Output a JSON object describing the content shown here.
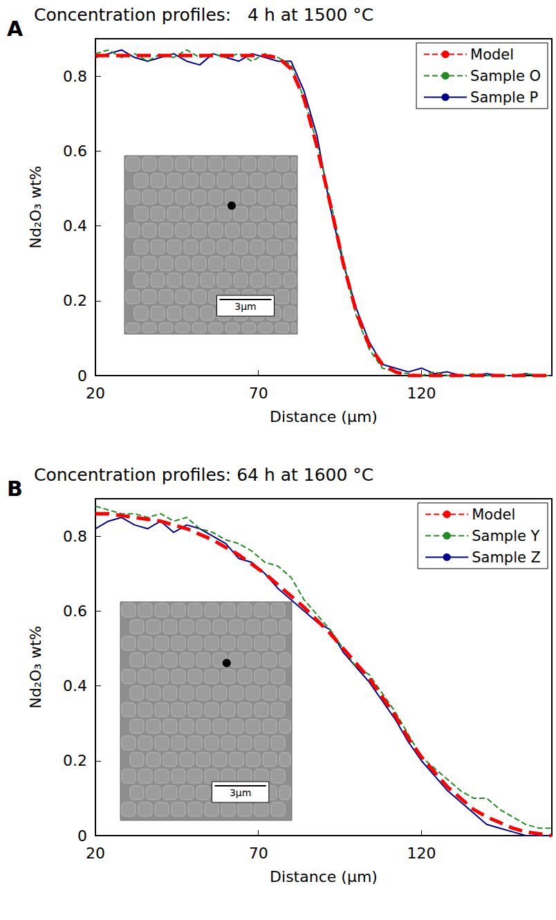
{
  "chart_data": [
    {
      "type": "line",
      "panel_label": "A",
      "title": "Concentration profiles:   4 h at 1500 °C",
      "x_label": "Distance (μm)",
      "y_label": "Nd₂O₃ wt%",
      "x": [
        20,
        24,
        28,
        32,
        36,
        40,
        44,
        48,
        52,
        56,
        60,
        64,
        68,
        72,
        76,
        80,
        84,
        88,
        92,
        96,
        100,
        104,
        108,
        112,
        116,
        120,
        124,
        128,
        132,
        136,
        140,
        144,
        148,
        152,
        156,
        160
      ],
      "series": [
        {
          "name": "Model",
          "color": "#ff0000",
          "line_style": "dashed",
          "marker": "none",
          "values": [
            0.855,
            0.855,
            0.855,
            0.855,
            0.855,
            0.855,
            0.855,
            0.855,
            0.855,
            0.855,
            0.855,
            0.855,
            0.855,
            0.855,
            0.85,
            0.82,
            0.74,
            0.61,
            0.46,
            0.3,
            0.17,
            0.08,
            0.03,
            0.01,
            0,
            0,
            0,
            0,
            0,
            0,
            0,
            0,
            0,
            0,
            0,
            0
          ]
        },
        {
          "name": "Sample O",
          "color": "#228b22",
          "line_style": "dashed",
          "marker": "none",
          "values": [
            0.86,
            0.87,
            0.85,
            0.86,
            0.84,
            0.86,
            0.85,
            0.87,
            0.85,
            0.86,
            0.85,
            0.86,
            0.84,
            0.86,
            0.85,
            0.83,
            0.74,
            0.62,
            0.47,
            0.31,
            0.16,
            0.07,
            0.02,
            0.01,
            0.005,
            0,
            0.01,
            0,
            0,
            0.005,
            0,
            0,
            0,
            0.005,
            0,
            0
          ]
        },
        {
          "name": "Sample P",
          "color": "#00008b",
          "line_style": "solid",
          "marker": "none",
          "values": [
            0.85,
            0.86,
            0.87,
            0.85,
            0.84,
            0.85,
            0.86,
            0.84,
            0.83,
            0.86,
            0.85,
            0.84,
            0.86,
            0.85,
            0.84,
            0.84,
            0.76,
            0.64,
            0.45,
            0.3,
            0.18,
            0.09,
            0.03,
            0.02,
            0.01,
            0.02,
            0.005,
            0.01,
            0,
            0,
            0.005,
            0,
            0,
            0.005,
            0,
            0
          ]
        }
      ],
      "xlim": [
        20,
        160
      ],
      "xticks": [
        20,
        70,
        120
      ],
      "ylim": [
        0,
        0.9
      ],
      "yticks": [
        0,
        0.2,
        0.4,
        0.6,
        0.8
      ],
      "grid": false,
      "legend": "upper right",
      "inset": {
        "scale_bar": "3μm"
      }
    },
    {
      "type": "line",
      "panel_label": "B",
      "title": "Concentration profiles: 64 h at 1600 °C",
      "x_label": "Distance (μm)",
      "y_label": "Nd₂O₃ wt%",
      "x": [
        20,
        24,
        28,
        32,
        36,
        40,
        44,
        48,
        52,
        56,
        60,
        64,
        68,
        72,
        76,
        80,
        84,
        88,
        92,
        96,
        100,
        104,
        108,
        112,
        116,
        120,
        124,
        128,
        132,
        136,
        140,
        144,
        148,
        152,
        156,
        160
      ],
      "series": [
        {
          "name": "Model",
          "color": "#ff0000",
          "line_style": "dashed",
          "marker": "none",
          "values": [
            0.86,
            0.86,
            0.855,
            0.85,
            0.845,
            0.84,
            0.83,
            0.82,
            0.805,
            0.79,
            0.77,
            0.75,
            0.725,
            0.7,
            0.67,
            0.64,
            0.61,
            0.575,
            0.54,
            0.5,
            0.46,
            0.42,
            0.37,
            0.32,
            0.26,
            0.21,
            0.17,
            0.13,
            0.1,
            0.07,
            0.05,
            0.035,
            0.02,
            0.01,
            0.005,
            0
          ]
        },
        {
          "name": "Sample Y",
          "color": "#228b22",
          "line_style": "dashed",
          "marker": "none",
          "values": [
            0.88,
            0.87,
            0.86,
            0.86,
            0.85,
            0.86,
            0.84,
            0.85,
            0.82,
            0.81,
            0.79,
            0.78,
            0.76,
            0.73,
            0.72,
            0.69,
            0.63,
            0.59,
            0.55,
            0.5,
            0.45,
            0.43,
            0.38,
            0.33,
            0.27,
            0.21,
            0.18,
            0.15,
            0.12,
            0.1,
            0.1,
            0.07,
            0.05,
            0.03,
            0.02,
            0.02
          ]
        },
        {
          "name": "Sample Z",
          "color": "#00008b",
          "line_style": "solid",
          "marker": "none",
          "values": [
            0.82,
            0.84,
            0.85,
            0.83,
            0.82,
            0.84,
            0.81,
            0.83,
            0.82,
            0.8,
            0.78,
            0.74,
            0.73,
            0.7,
            0.66,
            0.63,
            0.6,
            0.57,
            0.55,
            0.49,
            0.45,
            0.41,
            0.36,
            0.31,
            0.25,
            0.2,
            0.16,
            0.12,
            0.09,
            0.06,
            0.03,
            0.02,
            0.01,
            0,
            0,
            0
          ]
        }
      ],
      "xlim": [
        20,
        160
      ],
      "xticks": [
        20,
        70,
        120
      ],
      "ylim": [
        0,
        0.9
      ],
      "yticks": [
        0,
        0.2,
        0.4,
        0.6,
        0.8
      ],
      "grid": false,
      "legend": "upper right",
      "inset": {
        "scale_bar": "3μm"
      }
    }
  ]
}
